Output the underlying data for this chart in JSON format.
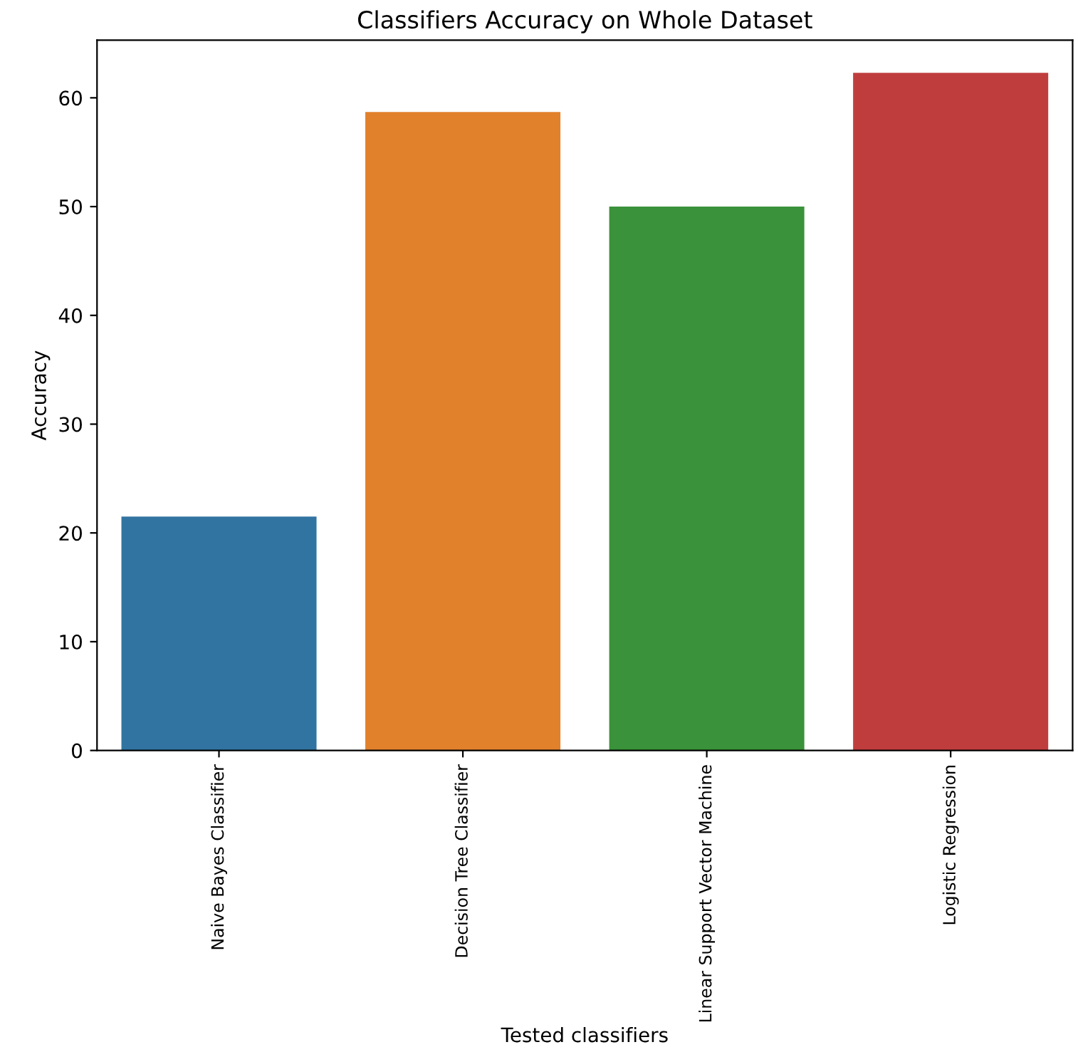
{
  "chart_data": {
    "type": "bar",
    "title": "Classifiers Accuracy on Whole Dataset",
    "xlabel": "Tested classifiers",
    "ylabel": "Accuracy",
    "categories": [
      "Naive Bayes Classifier",
      "Decision Tree Classifier",
      "Linear Support Vector Machine",
      "Logistic Regression"
    ],
    "values": [
      21.5,
      58.7,
      50.0,
      62.3
    ],
    "colors": [
      "#3274a1",
      "#e1812c",
      "#3a923a",
      "#c03d3e"
    ],
    "ylim": [
      0,
      65.3
    ],
    "yticks": [
      0,
      10,
      20,
      30,
      40,
      50,
      60
    ],
    "grid": false
  }
}
